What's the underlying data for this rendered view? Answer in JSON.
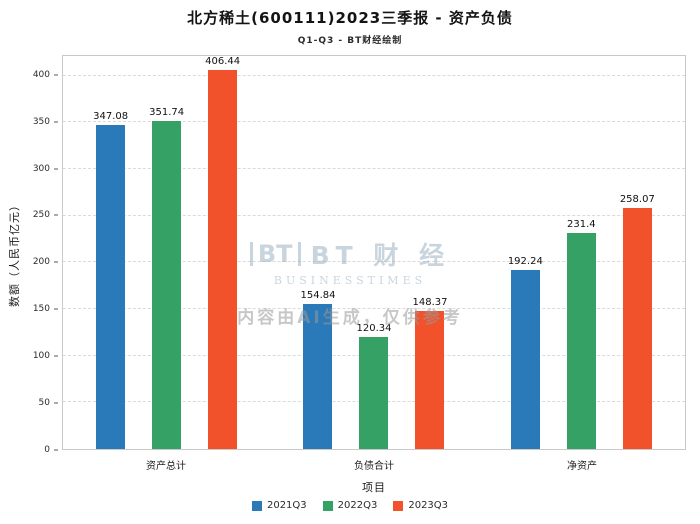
{
  "title": "北方稀土(600111)2023三季报 - 资产负债",
  "subtitle": "Q1-Q3 - BT财经绘制",
  "watermark": {
    "logo_text": "BT",
    "brand": "BT 财 经",
    "brand_sub": "BUSINESSTIMES",
    "disclaimer": "内容由AI生成，仅供参考"
  },
  "chart_data": {
    "type": "bar",
    "title": "北方稀土(600111)2023三季报 - 资产负债",
    "subtitle": "Q1-Q3 - BT财经绘制",
    "categories": [
      "资产总计",
      "负债合计",
      "净资产"
    ],
    "series": [
      {
        "name": "2021Q3",
        "color": "#2a7ab9",
        "values": [
          347.08,
          154.84,
          192.24
        ]
      },
      {
        "name": "2022Q3",
        "color": "#35a165",
        "values": [
          351.74,
          120.34,
          231.4
        ]
      },
      {
        "name": "2023Q3",
        "color": "#f1512b",
        "values": [
          406.44,
          148.37,
          258.07
        ]
      }
    ],
    "xlabel": "项目",
    "ylabel": "数额（人民币亿元）",
    "ylim": [
      0,
      421
    ],
    "yticks": [
      0,
      50,
      100,
      150,
      200,
      250,
      300,
      350,
      400
    ],
    "grid": "dashed-horizontal",
    "legend_position": "bottom"
  }
}
